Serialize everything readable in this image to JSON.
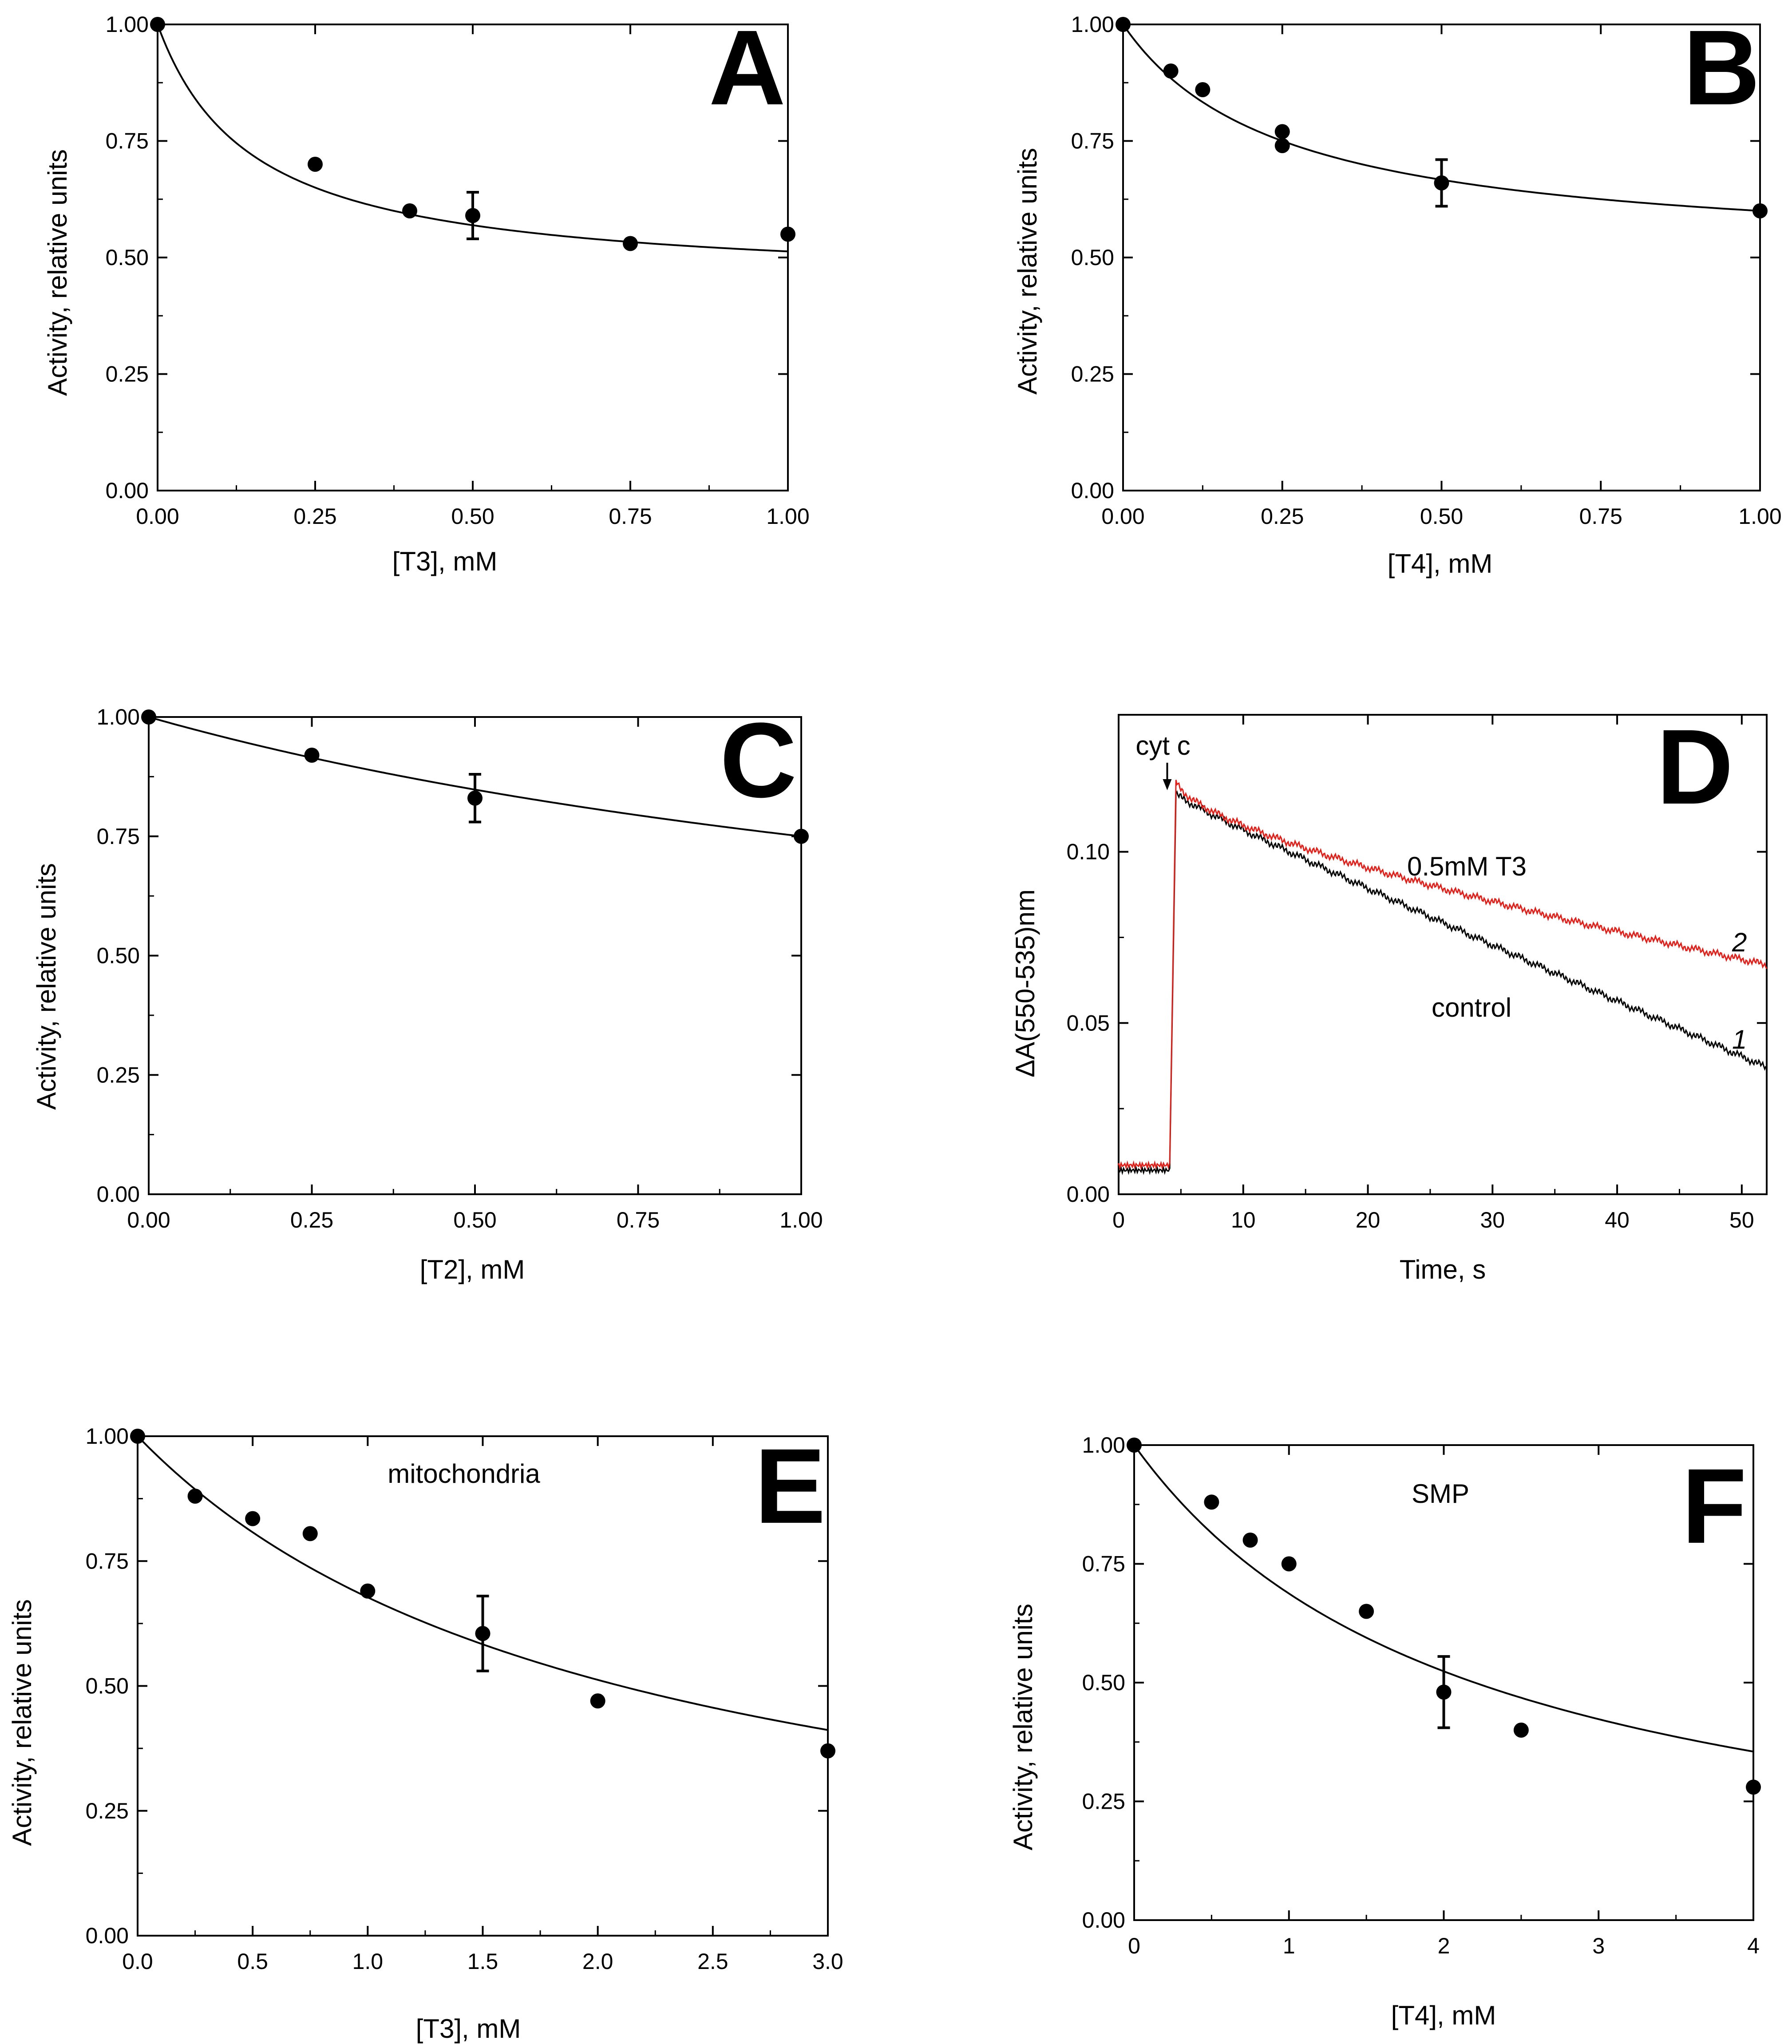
{
  "chart_data": [
    {
      "panel": "A",
      "type": "scatter",
      "xlabel": "[T3], mM",
      "ylabel": "Activity, relative units",
      "xlim": [
        0,
        1.0
      ],
      "ylim": [
        0,
        1.0
      ],
      "xticks": [
        "0.00",
        "0.25",
        "0.50",
        "0.75",
        "1.00"
      ],
      "yticks": [
        "0.00",
        "0.25",
        "0.50",
        "0.75",
        "1.00"
      ],
      "points": [
        {
          "x": 0.0,
          "y": 1.0
        },
        {
          "x": 0.25,
          "y": 0.7
        },
        {
          "x": 0.4,
          "y": 0.6
        },
        {
          "x": 0.5,
          "y": 0.59,
          "err": 0.05
        },
        {
          "x": 0.75,
          "y": 0.53
        },
        {
          "x": 1.0,
          "y": 0.55
        }
      ],
      "fit": {
        "residual": 0.44,
        "half_conc": 0.15
      },
      "annotations": []
    },
    {
      "panel": "B",
      "type": "scatter",
      "xlabel": "[T4], mM",
      "ylabel": "Activity, relative units",
      "xlim": [
        0,
        1.0
      ],
      "ylim": [
        0,
        1.0
      ],
      "xticks": [
        "0.00",
        "0.25",
        "0.50",
        "0.75",
        "1.00"
      ],
      "yticks": [
        "0.00",
        "0.25",
        "0.50",
        "0.75",
        "1.00"
      ],
      "points": [
        {
          "x": 0.0,
          "y": 1.0
        },
        {
          "x": 0.075,
          "y": 0.9
        },
        {
          "x": 0.125,
          "y": 0.86
        },
        {
          "x": 0.25,
          "y": 0.77
        },
        {
          "x": 0.25,
          "y": 0.74
        },
        {
          "x": 0.5,
          "y": 0.66,
          "err": 0.05
        },
        {
          "x": 1.0,
          "y": 0.6
        }
      ],
      "fit": {
        "residual": 0.5,
        "half_conc": 0.25
      },
      "annotations": []
    },
    {
      "panel": "C",
      "type": "scatter",
      "xlabel": "[T2], mM",
      "ylabel": "Activity, relative units",
      "xlim": [
        0,
        1.0
      ],
      "ylim": [
        0,
        1.0
      ],
      "xticks": [
        "0.00",
        "0.25",
        "0.50",
        "0.75",
        "1.00"
      ],
      "yticks": [
        "0.00",
        "0.25",
        "0.50",
        "0.75",
        "1.00"
      ],
      "points": [
        {
          "x": 0.0,
          "y": 1.0
        },
        {
          "x": 0.25,
          "y": 0.92
        },
        {
          "x": 0.5,
          "y": 0.83,
          "err": 0.05
        },
        {
          "x": 1.0,
          "y": 0.75
        }
      ],
      "fit": {
        "residual": 0.3,
        "half_conc": 1.8
      },
      "annotations": []
    },
    {
      "panel": "D",
      "type": "line",
      "xlabel": "Time, s",
      "ylabel": "ΔA(550-535)nm",
      "xlim": [
        0,
        52
      ],
      "ylim": [
        0,
        0.14
      ],
      "xticks": [
        "0",
        "10",
        "20",
        "30",
        "40",
        "50"
      ],
      "yticks": [
        "0.00",
        "0.05",
        "0.10"
      ],
      "series": [
        {
          "name": "control",
          "number": "1",
          "color": "#000000",
          "baseline": 0.007,
          "inject_time": 4.2,
          "peak_time": 4.6,
          "peak": 0.117,
          "end_time": 52,
          "end_value": 0.037,
          "curvature": 0.1
        },
        {
          "name": "0.5mM T3",
          "number": "2",
          "color": "#e0211b",
          "baseline": 0.0085,
          "inject_time": 4.2,
          "peak_time": 4.6,
          "peak": 0.121,
          "end_time": 52,
          "end_value": 0.067,
          "curvature": 0.7
        }
      ],
      "annotations": [
        "cyt c"
      ]
    },
    {
      "panel": "E",
      "type": "scatter",
      "xlabel": "[T3], mM",
      "ylabel": "Activity, relative units",
      "xlim": [
        0,
        3.0
      ],
      "ylim": [
        0,
        1.0
      ],
      "xticks": [
        "0.0",
        "0.5",
        "1.0",
        "1.5",
        "2.0",
        "2.5",
        "3.0"
      ],
      "yticks": [
        "0.00",
        "0.25",
        "0.50",
        "0.75",
        "1.00"
      ],
      "points": [
        {
          "x": 0.0,
          "y": 1.0
        },
        {
          "x": 0.25,
          "y": 0.88
        },
        {
          "x": 0.5,
          "y": 0.835
        },
        {
          "x": 0.75,
          "y": 0.805
        },
        {
          "x": 1.0,
          "y": 0.69
        },
        {
          "x": 1.5,
          "y": 0.605,
          "err": 0.075
        },
        {
          "x": 2.0,
          "y": 0.47
        },
        {
          "x": 3.0,
          "y": 0.37
        }
      ],
      "fit": {
        "residual": 0.0,
        "half_conc": 2.1
      },
      "annotations": [
        "mitochondria"
      ]
    },
    {
      "panel": "F",
      "type": "scatter",
      "xlabel": "[T4], mM",
      "ylabel": "Activity, relative units",
      "xlim": [
        0,
        4.0
      ],
      "ylim": [
        0,
        1.0
      ],
      "xticks": [
        "0",
        "1",
        "2",
        "3",
        "4"
      ],
      "yticks": [
        "0.00",
        "0.25",
        "0.50",
        "0.75",
        "1.00"
      ],
      "points": [
        {
          "x": 0.0,
          "y": 1.0
        },
        {
          "x": 0.5,
          "y": 0.88
        },
        {
          "x": 0.75,
          "y": 0.8
        },
        {
          "x": 1.0,
          "y": 0.75
        },
        {
          "x": 1.5,
          "y": 0.65
        },
        {
          "x": 2.0,
          "y": 0.48,
          "err": 0.075
        },
        {
          "x": 2.5,
          "y": 0.4
        },
        {
          "x": 4.0,
          "y": 0.28
        }
      ],
      "fit": {
        "residual": 0.0,
        "half_conc": 2.2
      },
      "annotations": [
        "SMP"
      ]
    }
  ]
}
